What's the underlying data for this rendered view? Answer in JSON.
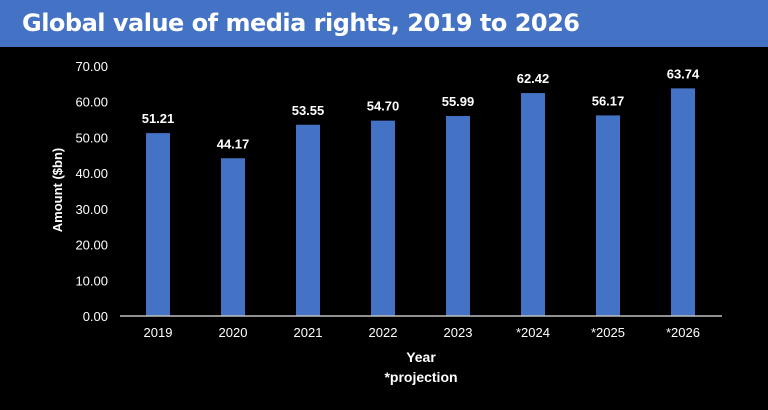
{
  "title": "Global value of media rights, 2019 to 2026",
  "chart_data": {
    "type": "bar",
    "title": "Global value of media rights, 2019 to 2026",
    "categories": [
      "2019",
      "2020",
      "2021",
      "2022",
      "2023",
      "*2024",
      "*2025",
      "*2026"
    ],
    "values": [
      51.21,
      44.17,
      53.55,
      54.7,
      55.99,
      62.42,
      56.17,
      63.74
    ],
    "value_labels": [
      "51.21",
      "44.17",
      "53.55",
      "54.70",
      "55.99",
      "62.42",
      "56.17",
      "63.74"
    ],
    "xlabel": "Year",
    "note": "*projection",
    "ylabel": "Amount ($bn)",
    "ylim": [
      0,
      70
    ],
    "yticks": [
      "0.00",
      "10.00",
      "20.00",
      "30.00",
      "40.00",
      "50.00",
      "60.00",
      "70.00"
    ],
    "grid": false,
    "bar_color": "#4472c4",
    "background": "#000000",
    "header_color": "#4472c4"
  }
}
